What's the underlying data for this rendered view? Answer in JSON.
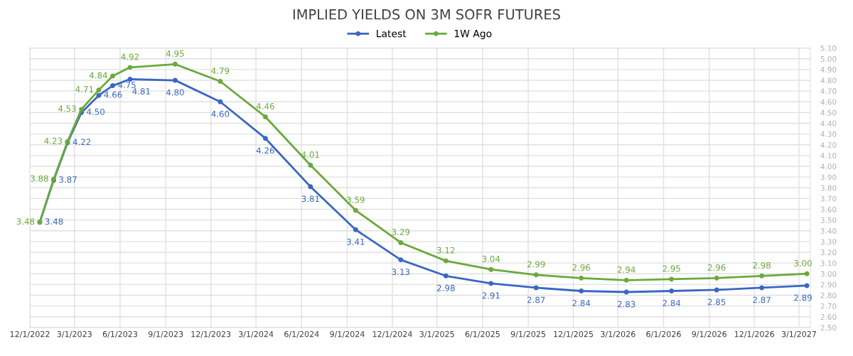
{
  "chart_data": {
    "type": "line",
    "title": "IMPLIED YIELDS ON 3M SOFR FUTURES",
    "x": [
      "2022-12-21",
      "2023-01-18",
      "2023-02-15",
      "2023-03-15",
      "2023-04-19",
      "2023-05-17",
      "2023-06-21",
      "2023-09-20",
      "2023-12-20",
      "2024-03-20",
      "2024-06-19",
      "2024-09-18",
      "2024-12-18",
      "2025-03-19",
      "2025-06-18",
      "2025-09-17",
      "2025-12-17",
      "2026-03-18",
      "2026-06-17",
      "2026-09-16",
      "2026-12-16",
      "2027-03-17"
    ],
    "series": [
      {
        "name": "Latest",
        "color": "#3a67c4",
        "values": [
          3.48,
          3.87,
          4.22,
          4.5,
          4.66,
          4.75,
          4.81,
          4.8,
          4.6,
          4.26,
          3.81,
          3.41,
          3.13,
          2.98,
          2.91,
          2.87,
          2.84,
          2.83,
          2.84,
          2.85,
          2.87,
          2.89
        ],
        "value_labels": [
          "3.48",
          "3.87",
          "4.22",
          "4.50",
          "4.66",
          "4.75",
          "4.81",
          "4.80",
          "4.60",
          "4.26",
          "3.81",
          "3.41",
          "3.13",
          "2.98",
          "2.91",
          "2.87",
          "2.84",
          "2.83",
          "2.84",
          "2.85",
          "2.87",
          "2.89"
        ]
      },
      {
        "name": "1W Ago",
        "color": "#6aaa3c",
        "values": [
          3.48,
          3.88,
          4.23,
          4.53,
          4.71,
          4.84,
          4.92,
          4.95,
          4.79,
          4.46,
          4.01,
          3.59,
          3.29,
          3.12,
          3.04,
          2.99,
          2.96,
          2.94,
          2.95,
          2.96,
          2.98,
          3.0
        ],
        "value_labels": [
          "3.48",
          "3.88",
          "4.23",
          "4.53",
          "4.71",
          "4.84",
          "4.92",
          "4.95",
          "4.79",
          "4.46",
          "4.01",
          "3.59",
          "3.29",
          "3.12",
          "3.04",
          "2.99",
          "2.96",
          "2.94",
          "2.95",
          "2.96",
          "2.98",
          "3.00"
        ]
      }
    ],
    "xlim": [
      "2022-12-01",
      "2027-03-24"
    ],
    "xticks": [
      {
        "value": "2022-12-01",
        "label": "12/1/2022"
      },
      {
        "value": "2023-03-01",
        "label": "3/1/2023"
      },
      {
        "value": "2023-06-01",
        "label": "6/1/2023"
      },
      {
        "value": "2023-09-01",
        "label": "9/1/2023"
      },
      {
        "value": "2023-12-01",
        "label": "12/1/2023"
      },
      {
        "value": "2024-03-01",
        "label": "3/1/2024"
      },
      {
        "value": "2024-06-01",
        "label": "6/1/2024"
      },
      {
        "value": "2024-09-01",
        "label": "9/1/2024"
      },
      {
        "value": "2024-12-01",
        "label": "12/1/2024"
      },
      {
        "value": "2025-03-01",
        "label": "3/1/2025"
      },
      {
        "value": "2025-06-01",
        "label": "6/1/2025"
      },
      {
        "value": "2025-09-01",
        "label": "9/1/2025"
      },
      {
        "value": "2025-12-01",
        "label": "12/1/2025"
      },
      {
        "value": "2026-03-01",
        "label": "3/1/2026"
      },
      {
        "value": "2026-06-01",
        "label": "6/1/2026"
      },
      {
        "value": "2026-09-01",
        "label": "9/1/2026"
      },
      {
        "value": "2026-12-01",
        "label": "12/1/2026"
      },
      {
        "value": "2027-03-01",
        "label": "3/1/2027"
      }
    ],
    "ylim": [
      2.5,
      5.1
    ],
    "yticks": [
      {
        "value": 2.5,
        "label": "2.50"
      },
      {
        "value": 2.6,
        "label": "2.60"
      },
      {
        "value": 2.7,
        "label": "2.70"
      },
      {
        "value": 2.8,
        "label": "2.80"
      },
      {
        "value": 2.9,
        "label": "2.90"
      },
      {
        "value": 3.0,
        "label": "3.00"
      },
      {
        "value": 3.1,
        "label": "3.10"
      },
      {
        "value": 3.2,
        "label": "3.20"
      },
      {
        "value": 3.3,
        "label": "3.30"
      },
      {
        "value": 3.4,
        "label": "3.40"
      },
      {
        "value": 3.5,
        "label": "3.50"
      },
      {
        "value": 3.6,
        "label": "3.60"
      },
      {
        "value": 3.7,
        "label": "3.70"
      },
      {
        "value": 3.8,
        "label": "3.80"
      },
      {
        "value": 3.9,
        "label": "3.90"
      },
      {
        "value": 4.0,
        "label": "4.00"
      },
      {
        "value": 4.1,
        "label": "4.10"
      },
      {
        "value": 4.2,
        "label": "4.20"
      },
      {
        "value": 4.3,
        "label": "4.30"
      },
      {
        "value": 4.4,
        "label": "4.40"
      },
      {
        "value": 4.5,
        "label": "4.50"
      },
      {
        "value": 4.6,
        "label": "4.60"
      },
      {
        "value": 4.7,
        "label": "4.70"
      },
      {
        "value": 4.8,
        "label": "4.80"
      },
      {
        "value": 4.9,
        "label": "4.90"
      },
      {
        "value": 5.0,
        "label": "5.00"
      },
      {
        "value": 5.1,
        "label": "5.10"
      }
    ],
    "grid": true,
    "legend": "top",
    "marker": "circle",
    "line_style": "solid"
  }
}
